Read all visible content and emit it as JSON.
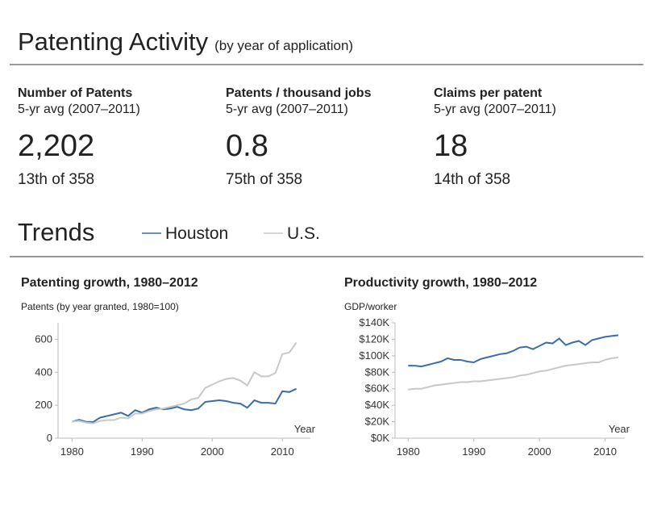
{
  "header": {
    "title": "Patenting Activity",
    "subtitle": "(by year of application)"
  },
  "metrics": [
    {
      "label": "Number of Patents",
      "period": "5-yr avg (2007–2011)",
      "value": "2,202",
      "rank": "13th of 358"
    },
    {
      "label": "Patents / thousand jobs",
      "period": "5-yr avg (2007–2011)",
      "value": "0.8",
      "rank": "75th of 358"
    },
    {
      "label": "Claims per patent",
      "period": "5-yr avg (2007–2011)",
      "value": "18",
      "rank": "14th of 358"
    }
  ],
  "trends": {
    "title": "Trends"
  },
  "chart_data": [
    {
      "type": "line",
      "title": "Patenting growth, 1980–2012",
      "ylabel": "Patents (by year granted, 1980=100)",
      "xlabel": "Year",
      "x": [
        1980,
        1981,
        1982,
        1983,
        1984,
        1985,
        1986,
        1987,
        1988,
        1989,
        1990,
        1991,
        1992,
        1993,
        1994,
        1995,
        1996,
        1997,
        1998,
        1999,
        2000,
        2001,
        2002,
        2003,
        2004,
        2005,
        2006,
        2007,
        2008,
        2009,
        2010,
        2011,
        2012
      ],
      "series": [
        {
          "name": "Houston",
          "color": "#3a6ea5",
          "values": [
            100,
            112,
            100,
            98,
            125,
            135,
            145,
            155,
            135,
            170,
            155,
            175,
            185,
            175,
            180,
            190,
            175,
            170,
            180,
            220,
            225,
            230,
            225,
            215,
            210,
            185,
            230,
            215,
            215,
            210,
            285,
            280,
            300
          ]
        },
        {
          "name": "U.S.",
          "color": "#c8c8c8",
          "values": [
            100,
            105,
            95,
            90,
            105,
            110,
            110,
            125,
            120,
            150,
            150,
            165,
            175,
            180,
            190,
            200,
            210,
            235,
            245,
            305,
            325,
            345,
            360,
            365,
            350,
            320,
            400,
            375,
            375,
            395,
            510,
            520,
            580
          ]
        }
      ],
      "xlim": [
        1978,
        2014
      ],
      "xticks": [
        1980,
        1990,
        2000,
        2010
      ],
      "ylim": [
        0,
        700
      ],
      "yticks": [
        0,
        200,
        400,
        600
      ]
    },
    {
      "type": "line",
      "title": "Productivity growth, 1980–2012",
      "ylabel": "GDP/worker",
      "xlabel": "Year",
      "x": [
        1980,
        1981,
        1982,
        1983,
        1984,
        1985,
        1986,
        1987,
        1988,
        1989,
        1990,
        1991,
        1992,
        1993,
        1994,
        1995,
        1996,
        1997,
        1998,
        1999,
        2000,
        2001,
        2002,
        2003,
        2004,
        2005,
        2006,
        2007,
        2008,
        2009,
        2010,
        2011,
        2012
      ],
      "series": [
        {
          "name": "Houston",
          "color": "#3a6ea5",
          "values": [
            88000,
            88000,
            87000,
            89000,
            91000,
            93000,
            97000,
            95000,
            95000,
            93000,
            92000,
            96000,
            98000,
            100000,
            102000,
            103000,
            106000,
            110000,
            111000,
            108000,
            112000,
            116000,
            115000,
            121000,
            113000,
            116000,
            118000,
            113000,
            119000,
            121000,
            123000,
            124000,
            125000
          ]
        },
        {
          "name": "U.S.",
          "color": "#c8c8c8",
          "values": [
            59000,
            60000,
            60000,
            62000,
            64000,
            65000,
            66000,
            67000,
            68000,
            68000,
            69000,
            69000,
            70000,
            71000,
            72000,
            73000,
            74000,
            76000,
            77000,
            79000,
            81000,
            82000,
            84000,
            86000,
            88000,
            89000,
            90000,
            91000,
            92000,
            92000,
            95000,
            97000,
            98000
          ]
        }
      ],
      "xlim": [
        1978,
        2013
      ],
      "xticks": [
        1980,
        1990,
        2000,
        2010
      ],
      "ylim": [
        0,
        140000
      ],
      "yticks": [
        {
          "value": 0,
          "label": "$0K"
        },
        {
          "value": 20000,
          "label": "$20K"
        },
        {
          "value": 40000,
          "label": "$40K"
        },
        {
          "value": 60000,
          "label": "$60K"
        },
        {
          "value": 80000,
          "label": "$80K"
        },
        {
          "value": 100000,
          "label": "$100K"
        },
        {
          "value": 120000,
          "label": "$120K"
        },
        {
          "value": 140000,
          "label": "$140K"
        }
      ]
    }
  ]
}
